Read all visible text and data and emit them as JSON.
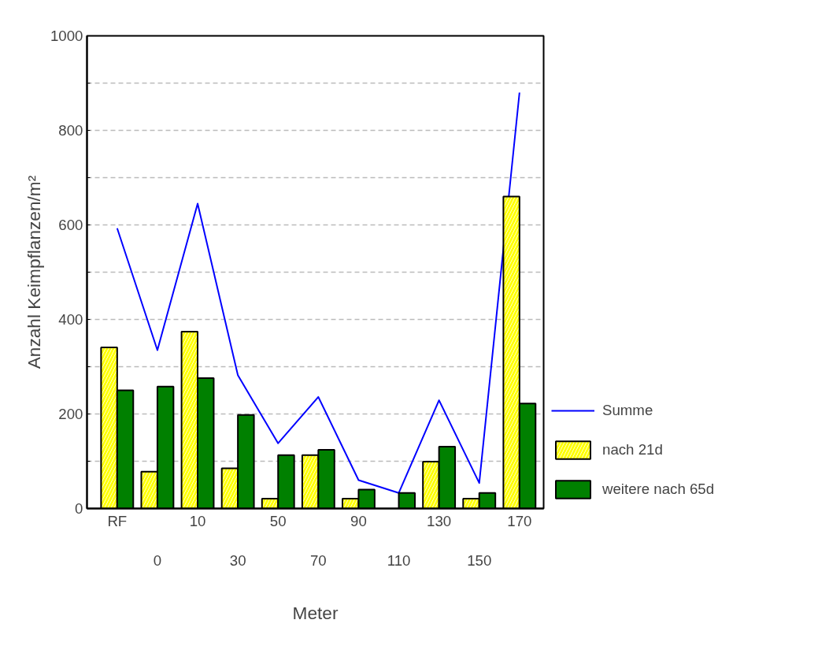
{
  "chart_data": {
    "type": "bar",
    "xlabel": "Meter",
    "ylabel": "Anzahl Keimpflanzen/m²",
    "categories": [
      "RF",
      "0",
      "10",
      "30",
      "50",
      "70",
      "90",
      "110",
      "130",
      "150",
      "170"
    ],
    "series": [
      {
        "name": "Summe",
        "type": "line",
        "color": "#0000ff",
        "values": [
          593,
          335,
          645,
          282,
          138,
          236,
          60,
          33,
          229,
          54,
          880
        ]
      },
      {
        "name": "nach 21d",
        "color": "#ffff00",
        "values": [
          341,
          78,
          374,
          85,
          21,
          113,
          21,
          null,
          99,
          21,
          660
        ]
      },
      {
        "name": "weitere nach 65d",
        "color": "#008000",
        "values": [
          250,
          258,
          276,
          198,
          113,
          124,
          40,
          33,
          131,
          33,
          222
        ]
      }
    ],
    "ylim": [
      0,
      1000
    ],
    "yticks": [
      0,
      {
        "value": 100,
        "label": null
      },
      200,
      {
        "value": 300,
        "label": null
      },
      400,
      {
        "value": 500,
        "label": null
      },
      600,
      {
        "value": 700,
        "label": null
      },
      800,
      {
        "value": 900,
        "label": null
      },
      1000
    ],
    "grid": "y",
    "legend": "right"
  }
}
